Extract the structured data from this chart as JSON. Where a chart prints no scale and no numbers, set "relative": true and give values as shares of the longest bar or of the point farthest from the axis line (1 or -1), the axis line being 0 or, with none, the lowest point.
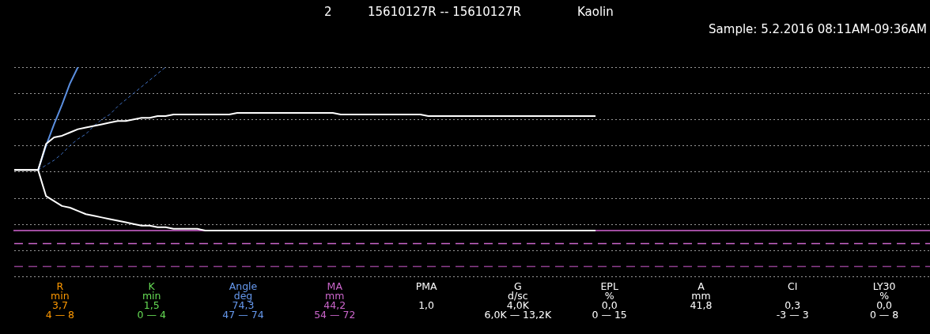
{
  "chart_data": [
    {
      "type": "line",
      "relative": true,
      "title": "15610127R -- 15610127R",
      "annotations": [
        "2",
        "Kaolin",
        "Sample: 5.2.2016 08:11AM-09:36AM"
      ],
      "grid": "y",
      "legend": false,
      "tick_labels": false,
      "marker": "none",
      "categories": [
        null,
        null,
        null,
        null,
        null,
        null,
        null,
        null,
        null,
        null,
        null,
        null,
        null,
        null,
        null,
        null,
        null,
        null,
        null,
        null,
        null,
        null,
        null,
        null,
        null,
        null,
        null,
        null,
        null,
        null,
        null,
        null,
        null,
        null,
        null,
        null,
        null,
        null,
        null,
        null,
        null,
        null,
        null,
        null,
        null,
        null,
        null,
        null,
        null,
        null,
        null,
        null,
        null,
        null,
        null,
        null,
        null,
        null,
        null,
        null,
        null,
        null,
        null,
        null,
        null,
        null,
        null,
        null,
        null,
        null,
        null,
        null,
        null,
        null,
        null,
        null,
        null,
        null,
        null,
        null,
        null,
        null,
        null,
        null,
        null,
        null,
        null,
        null,
        null,
        null,
        null,
        null,
        null,
        null,
        null,
        null,
        null,
        null,
        null,
        null,
        null,
        null,
        null,
        null,
        null,
        null,
        null,
        null,
        null,
        null,
        null,
        null,
        null,
        null,
        null,
        null
      ],
      "series": [
        {
          "color": "#ffffff",
          "line_style": "solid",
          "values": [
            0.37,
            0.37,
            0.37,
            0.37,
            0.53,
            0.57,
            0.58,
            0.6,
            0.62,
            0.63,
            0.64,
            0.65,
            0.66,
            0.67,
            0.67,
            0.68,
            0.69,
            0.69,
            0.7,
            0.7,
            0.71,
            0.71,
            0.71,
            0.71,
            0.71,
            0.71,
            0.71,
            0.71,
            0.72,
            0.72,
            0.72,
            0.72,
            0.72,
            0.72,
            0.72,
            0.72,
            0.72,
            0.72,
            0.72,
            0.72,
            0.72,
            0.71,
            0.71,
            0.71,
            0.71,
            0.71,
            0.71,
            0.71,
            0.71,
            0.71,
            0.71,
            0.71,
            0.7,
            0.7,
            0.7,
            0.7,
            0.7,
            0.7,
            0.7,
            0.7,
            0.7,
            0.7,
            0.7,
            0.7,
            0.7,
            0.7,
            0.7,
            0.7,
            0.7,
            0.7,
            0.7,
            0.7,
            0.7,
            0.7,
            null,
            null,
            null,
            null,
            null,
            null,
            null,
            null,
            null,
            null,
            null,
            null,
            null,
            null,
            null,
            null,
            null,
            null,
            null,
            null,
            null,
            null,
            null,
            null,
            null,
            null,
            null,
            null,
            null,
            null,
            null,
            null,
            null,
            null,
            null,
            null,
            null,
            null,
            null,
            null,
            null,
            null
          ]
        },
        {
          "color": "#ffffff",
          "line_style": "solid",
          "values": [
            0.37,
            0.37,
            0.37,
            0.37,
            0.21,
            0.18,
            0.15,
            0.14,
            0.12,
            0.1,
            0.09,
            0.08,
            0.07,
            0.06,
            0.05,
            0.04,
            0.03,
            0.03,
            0.02,
            0.02,
            0.01,
            0.01,
            0.01,
            0.01,
            0,
            0,
            0,
            0,
            0,
            0,
            0,
            0,
            0,
            0,
            0,
            0,
            0,
            0,
            0,
            0,
            0,
            0,
            0,
            0,
            0,
            0,
            0,
            0,
            0,
            0,
            0,
            0,
            0,
            0,
            0,
            0,
            0,
            0,
            0,
            0,
            0,
            0,
            0,
            0,
            0,
            0,
            0,
            0,
            0,
            0,
            0,
            0,
            0,
            0,
            null,
            null,
            null,
            null,
            null,
            null,
            null,
            null,
            null,
            null,
            null,
            null,
            null,
            null,
            null,
            null,
            null,
            null,
            null,
            null,
            null,
            null,
            null,
            null,
            null,
            null,
            null,
            null,
            null,
            null,
            null,
            null,
            null,
            null,
            null,
            null,
            null,
            null,
            null,
            null,
            null,
            null
          ]
        },
        {
          "color": "#5b8fe0",
          "line_style": "solid",
          "values": [
            null,
            null,
            null,
            0.37,
            0.52,
            0.65,
            0.77,
            0.9,
            1.0,
            null,
            null,
            null,
            null,
            null,
            null,
            null,
            null,
            null,
            null,
            null,
            null,
            null,
            null,
            null,
            null,
            null,
            null,
            null,
            null,
            null,
            null,
            null,
            null,
            null,
            null,
            null,
            null,
            null,
            null,
            null,
            null,
            null,
            null,
            null,
            null,
            null,
            null,
            null,
            null,
            null,
            null,
            null,
            null,
            null,
            null,
            null,
            null,
            null,
            null,
            null,
            null,
            null,
            null,
            null,
            null,
            null,
            null,
            null,
            null,
            null,
            null,
            null,
            null,
            null,
            null,
            null,
            null,
            null,
            null,
            null,
            null,
            null,
            null,
            null,
            null,
            null,
            null,
            null,
            null,
            null,
            null,
            null,
            null,
            null,
            null,
            null,
            null,
            null,
            null,
            null,
            null,
            null,
            null,
            null,
            null,
            null,
            null,
            null,
            null,
            null,
            null,
            null,
            null,
            null,
            null,
            null
          ]
        },
        {
          "color": "#3f6fc0",
          "line_style": "dashed",
          "values": [
            null,
            null,
            null,
            0.37,
            0.4,
            0.43,
            0.47,
            0.52,
            0.56,
            0.59,
            0.64,
            0.68,
            0.71,
            0.76,
            0.8,
            0.84,
            0.88,
            0.92,
            0.96,
            1.0,
            null,
            null,
            null,
            null,
            null,
            null,
            null,
            null,
            null,
            null,
            null,
            null,
            null,
            null,
            null,
            null,
            null,
            null,
            null,
            null,
            null,
            null,
            null,
            null,
            null,
            null,
            null,
            null,
            null,
            null,
            null,
            null,
            null,
            null,
            null,
            null,
            null,
            null,
            null,
            null,
            null,
            null,
            null,
            null,
            null,
            null,
            null,
            null,
            null,
            null,
            null,
            null,
            null,
            null,
            null,
            null,
            null,
            null,
            null,
            null,
            null,
            null,
            null,
            null,
            null,
            null,
            null,
            null,
            null,
            null,
            null,
            null,
            null,
            null,
            null,
            null,
            null,
            null,
            null,
            null,
            null,
            null,
            null,
            null,
            null,
            null,
            null,
            null,
            null,
            null,
            null,
            null,
            null,
            null,
            null,
            null
          ]
        }
      ],
      "ref_lines": [
        {
          "axis": "y",
          "value": -0.08,
          "color": "#cc66cc",
          "line_style": "dashed"
        },
        {
          "axis": "y",
          "value": -0.22,
          "color": "#8e3f8e",
          "line_style": "dashed"
        }
      ]
    },
    {
      "type": "other",
      "annotations": [
        "R\nmin\n3,7\n4 — 8",
        "K\nmin\n1,5\n0 — 4",
        "Angle\ndeg\n74,3\n47 — 74",
        "MA\nmm\n44,2\n54 — 72",
        "PMA\n\n1,0",
        "G\nd/sc\n4,0K\n6,0K — 13,2K",
        "EPL\n%\n0,0\n0 — 15",
        "A\nmm\n41,8",
        "CI\n\n0,3\n-3 — 3",
        "LY30\n%\n0,0\n0 — 8"
      ],
      "colors": [
        "#ff9900",
        "#66dd55",
        "#6699ee",
        "#cc66cc",
        "#ffffff",
        "#ffffff",
        "#ffffff",
        "#ffffff",
        "#ffffff",
        "#ffffff"
      ]
    }
  ]
}
